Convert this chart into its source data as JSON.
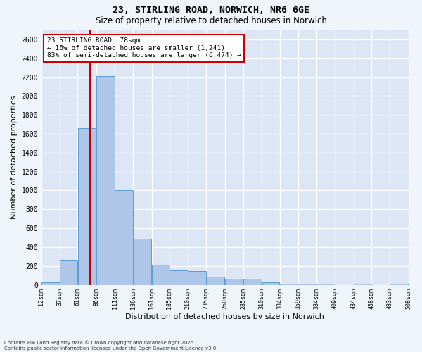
{
  "title1": "23, STIRLING ROAD, NORWICH, NR6 6GE",
  "title2": "Size of property relative to detached houses in Norwich",
  "xlabel": "Distribution of detached houses by size in Norwich",
  "ylabel": "Number of detached properties",
  "bar_edges": [
    12,
    37,
    61,
    86,
    111,
    136,
    161,
    185,
    210,
    235,
    260,
    285,
    310,
    334,
    359,
    384,
    409,
    434,
    458,
    483,
    508
  ],
  "bar_heights": [
    30,
    260,
    1660,
    2210,
    1000,
    490,
    210,
    155,
    145,
    85,
    65,
    65,
    30,
    10,
    10,
    10,
    0,
    10,
    0,
    10
  ],
  "bar_color": "#aec6e8",
  "bar_edgecolor": "#5a9ecf",
  "bg_color": "#dce6f5",
  "grid_color": "#ffffff",
  "fig_bg_color": "#f0f4fb",
  "property_sqm": 78,
  "property_label": "23 STIRLING ROAD: 78sqm",
  "pct_smaller": "16% of detached houses are smaller (1,241)",
  "pct_larger": "83% of semi-detached houses are larger (6,474)",
  "vline_color": "#cc0000",
  "annotation_box_color": "#cc0000",
  "ylim": [
    0,
    2700
  ],
  "yticks": [
    0,
    200,
    400,
    600,
    800,
    1000,
    1200,
    1400,
    1600,
    1800,
    2000,
    2200,
    2400,
    2600
  ],
  "footer1": "Contains HM Land Registry data © Crown copyright and database right 2025.",
  "footer2": "Contains public sector information licensed under the Open Government Licence v3.0."
}
